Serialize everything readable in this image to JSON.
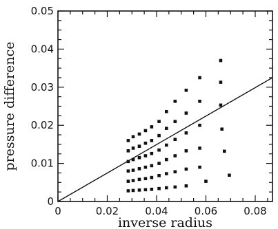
{
  "chart_data": {
    "type": "scatter",
    "xlabel": "inverse radius",
    "ylabel": "pressure difference",
    "xlim": [
      0,
      0.087
    ],
    "ylim": [
      0,
      0.05
    ],
    "xticks": [
      0,
      0.02,
      0.04,
      0.06,
      0.08
    ],
    "xtick_labels": [
      "0",
      "0.02",
      "0.04",
      "0.06",
      "0.08"
    ],
    "yticks": [
      0,
      0.01,
      0.02,
      0.03,
      0.04,
      0.05
    ],
    "ytick_labels": [
      "0",
      "0.01",
      "0.02",
      "0.03",
      "0.04",
      "0.05"
    ],
    "grid": false,
    "series": [
      {
        "marker": "square",
        "color": "#111111",
        "points": [
          [
            0.0285,
            0.016
          ],
          [
            0.0285,
            0.0133
          ],
          [
            0.0285,
            0.0105
          ],
          [
            0.0285,
            0.008
          ],
          [
            0.0285,
            0.0053
          ],
          [
            0.0285,
            0.0028
          ],
          [
            0.0305,
            0.017
          ],
          [
            0.0305,
            0.014
          ],
          [
            0.0305,
            0.011
          ],
          [
            0.0305,
            0.0082
          ],
          [
            0.0305,
            0.0055
          ],
          [
            0.0305,
            0.0029
          ],
          [
            0.033,
            0.0177
          ],
          [
            0.033,
            0.0145
          ],
          [
            0.033,
            0.0115
          ],
          [
            0.033,
            0.0086
          ],
          [
            0.033,
            0.0058
          ],
          [
            0.033,
            0.003
          ],
          [
            0.0355,
            0.0186
          ],
          [
            0.0355,
            0.0153
          ],
          [
            0.0355,
            0.012
          ],
          [
            0.0355,
            0.009
          ],
          [
            0.0355,
            0.006
          ],
          [
            0.0355,
            0.0031
          ],
          [
            0.038,
            0.0196
          ],
          [
            0.038,
            0.016
          ],
          [
            0.038,
            0.0126
          ],
          [
            0.038,
            0.0094
          ],
          [
            0.038,
            0.0063
          ],
          [
            0.038,
            0.0032
          ],
          [
            0.041,
            0.021
          ],
          [
            0.041,
            0.0173
          ],
          [
            0.041,
            0.0135
          ],
          [
            0.041,
            0.01
          ],
          [
            0.041,
            0.0068
          ],
          [
            0.041,
            0.0034
          ],
          [
            0.044,
            0.0236
          ],
          [
            0.044,
            0.0192
          ],
          [
            0.044,
            0.0148
          ],
          [
            0.044,
            0.011
          ],
          [
            0.044,
            0.0073
          ],
          [
            0.044,
            0.0036
          ],
          [
            0.0475,
            0.0263
          ],
          [
            0.0475,
            0.021
          ],
          [
            0.0475,
            0.0163
          ],
          [
            0.0475,
            0.012
          ],
          [
            0.0475,
            0.0078
          ],
          [
            0.0475,
            0.0038
          ],
          [
            0.052,
            0.0292
          ],
          [
            0.052,
            0.0232
          ],
          [
            0.052,
            0.018
          ],
          [
            0.052,
            0.0133
          ],
          [
            0.052,
            0.0085
          ],
          [
            0.052,
            0.0041
          ],
          [
            0.0575,
            0.0325
          ],
          [
            0.0575,
            0.0263
          ],
          [
            0.0575,
            0.02
          ],
          [
            0.0575,
            0.014
          ],
          [
            0.0575,
            0.009
          ],
          [
            0.06,
            0.0053
          ],
          [
            0.066,
            0.037
          ],
          [
            0.066,
            0.0313
          ],
          [
            0.066,
            0.0253
          ],
          [
            0.0665,
            0.019
          ],
          [
            0.0675,
            0.0132
          ],
          [
            0.0695,
            0.0069
          ]
        ]
      },
      {
        "type": "line",
        "color": "#111111",
        "points": [
          [
            0,
            0
          ],
          [
            0.087,
            0.0325
          ]
        ]
      }
    ]
  }
}
